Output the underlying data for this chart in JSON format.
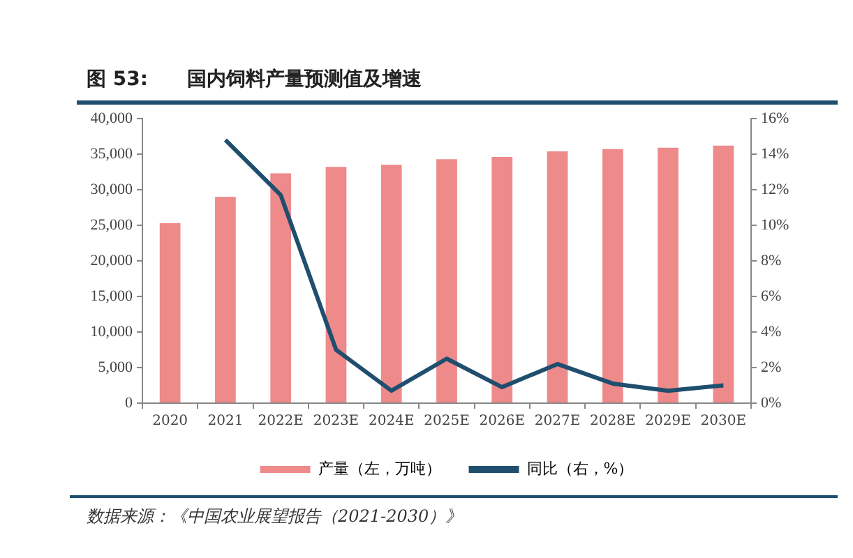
{
  "chart_data": {
    "type": "bar",
    "title": "图 53:　　国内饲料产量预测值及增速",
    "categories": [
      "2020",
      "2021",
      "2022E",
      "2023E",
      "2024E",
      "2025E",
      "2026E",
      "2027E",
      "2028E",
      "2029E",
      "2030E"
    ],
    "series": [
      {
        "name": "产量（左，万吨）",
        "color": "#ee8a8a",
        "values": [
          25300,
          29000,
          32300,
          33200,
          33500,
          34300,
          34600,
          35400,
          35700,
          35900,
          36200
        ]
      },
      {
        "name": "同比（右，%）",
        "type": "line",
        "axis": "y2",
        "color": "#1f4e6e",
        "values": [
          null,
          14.8,
          11.7,
          3.0,
          0.7,
          2.5,
          0.9,
          2.2,
          1.1,
          0.7,
          1.0
        ]
      }
    ],
    "ylim": [
      0,
      40000
    ],
    "yticks": [
      0,
      {
        "value": 5000,
        "label": "5,000"
      },
      {
        "value": 10000,
        "label": "10,000"
      },
      {
        "value": 15000,
        "label": "15,000"
      },
      {
        "value": 20000,
        "label": "20,000"
      },
      {
        "value": 25000,
        "label": "25,000"
      },
      {
        "value": 30000,
        "label": "30,000"
      },
      {
        "value": 35000,
        "label": "35,000"
      },
      {
        "value": 40000,
        "label": "40,000"
      }
    ],
    "y2lim": [
      0,
      16
    ],
    "y2ticks": [
      {
        "value": 0,
        "label": "0%"
      },
      {
        "value": 2,
        "label": "2%"
      },
      {
        "value": 4,
        "label": "4%"
      },
      {
        "value": 6,
        "label": "6%"
      },
      {
        "value": 8,
        "label": "8%"
      },
      {
        "value": 10,
        "label": "10%"
      },
      {
        "value": 12,
        "label": "12%"
      },
      {
        "value": 14,
        "label": "14%"
      },
      {
        "value": 16,
        "label": "16%"
      }
    ],
    "legend": "bottom",
    "grid": false,
    "marker": "none",
    "line_style": "solid",
    "annotations": [
      "数据来源：《中国农业展望报告（2021-2030）》"
    ]
  }
}
